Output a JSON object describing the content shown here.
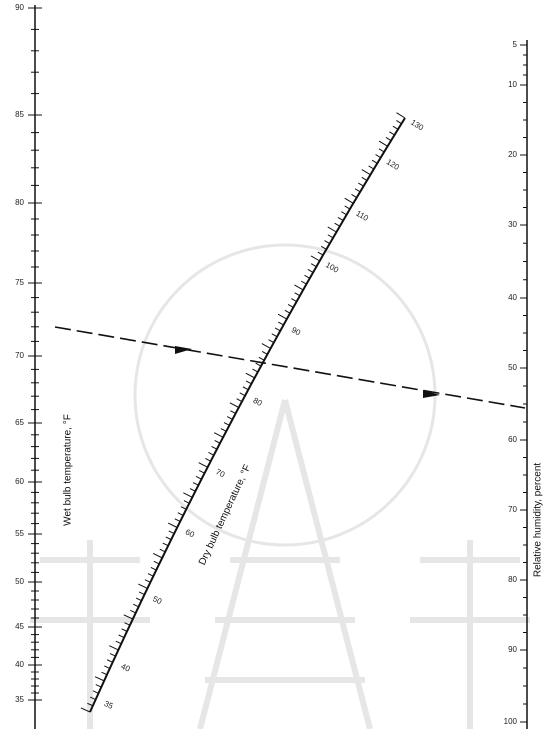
{
  "left_scale": {
    "title": "Wet bulb temperature, °F",
    "ticks": [
      "90",
      "85",
      "80",
      "75",
      "70",
      "65",
      "60",
      "55",
      "50",
      "45",
      "40",
      "35"
    ]
  },
  "right_scale": {
    "title": "Relative humidity, percent",
    "ticks": [
      "5",
      "10",
      "20",
      "30",
      "40",
      "50",
      "60",
      "70",
      "80",
      "90",
      "100"
    ]
  },
  "dry_bulb_scale": {
    "title": "Dry bulb temperature, °F",
    "ticks": [
      "130",
      "120",
      "110",
      "100",
      "90",
      "80",
      "70",
      "60",
      "50",
      "40",
      "35"
    ]
  }
}
